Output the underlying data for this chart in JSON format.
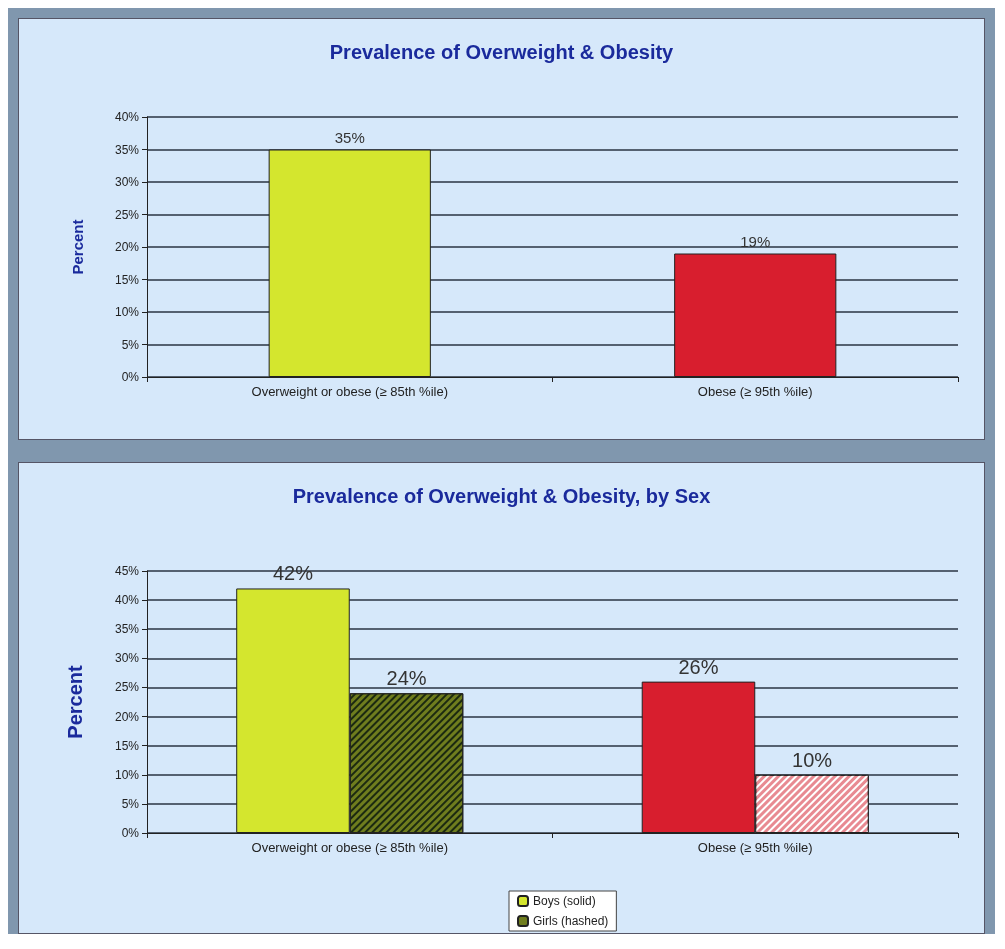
{
  "chart_data": [
    {
      "type": "bar",
      "title": "Prevalence of Overweight & Obesity",
      "ylabel": "Percent",
      "categories": [
        "Overweight or obese (≥ 85th %ile)",
        "Obese (≥ 95th %ile)"
      ],
      "values": [
        35,
        19
      ],
      "colors": [
        "#d4e62e",
        "#d81e2e"
      ],
      "value_labels": [
        "35%",
        "19%"
      ],
      "ylim": [
        0,
        40
      ],
      "yticks": [
        {
          "value": 0,
          "label": "0%"
        },
        {
          "value": 5,
          "label": "5%"
        },
        {
          "value": 10,
          "label": "10%"
        },
        {
          "value": 15,
          "label": "15%"
        },
        {
          "value": 20,
          "label": "20%"
        },
        {
          "value": 25,
          "label": "25%"
        },
        {
          "value": 30,
          "label": "30%"
        },
        {
          "value": 35,
          "label": "35%"
        },
        {
          "value": 40,
          "label": "40%"
        }
      ],
      "grid": "y",
      "legend": false
    },
    {
      "type": "bar",
      "title": "Prevalence of Overweight & Obesity, by Sex",
      "ylabel": "Percent",
      "categories": [
        "Overweight or obese (≥ 85th %ile)",
        "Obese (≥ 95th %ile)"
      ],
      "series": [
        {
          "name": "Boys (solid)",
          "colors": [
            "#d4e62e",
            "#d81e2e"
          ],
          "values": [
            42,
            26
          ],
          "value_labels": [
            "42%",
            "26%"
          ]
        },
        {
          "name": "Girls (hashed)",
          "colors": [
            "#6f7d1e",
            "#e88a92"
          ],
          "values": [
            24,
            10
          ],
          "value_labels": [
            "24%",
            "10%"
          ]
        }
      ],
      "ylim": [
        0,
        45
      ],
      "yticks": [
        {
          "value": 0,
          "label": "0%"
        },
        {
          "value": 5,
          "label": "5%"
        },
        {
          "value": 10,
          "label": "10%"
        },
        {
          "value": 15,
          "label": "15%"
        },
        {
          "value": 20,
          "label": "20%"
        },
        {
          "value": 25,
          "label": "25%"
        },
        {
          "value": 30,
          "label": "30%"
        },
        {
          "value": 35,
          "label": "35%"
        },
        {
          "value": 40,
          "label": "40%"
        },
        {
          "value": 45,
          "label": "45%"
        }
      ],
      "grid": "y",
      "legend": "bottom"
    }
  ]
}
